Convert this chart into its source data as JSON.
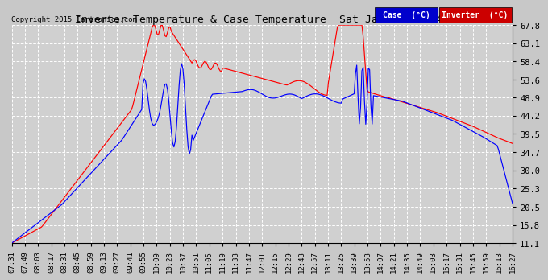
{
  "title": "Inverter Temperature & Case Temperature  Sat Jan 17  16:46",
  "copyright": "Copyright 2015 Cartronics.com",
  "legend_case_label": "Case  (°C)",
  "legend_inverter_label": "Inverter  (°C)",
  "case_color": "#0000ff",
  "inverter_color": "#ff0000",
  "legend_case_bg": "#0000cc",
  "legend_inverter_bg": "#cc0000",
  "background_color": "#c8c8c8",
  "plot_bg_color": "#d0d0d0",
  "grid_color": "#ffffff",
  "yticks": [
    11.1,
    15.8,
    20.5,
    25.3,
    30.0,
    34.7,
    39.5,
    44.2,
    48.9,
    53.6,
    58.4,
    63.1,
    67.8
  ],
  "ymin": 11.1,
  "ymax": 67.8,
  "xtick_labels": [
    "07:31",
    "07:49",
    "08:03",
    "08:17",
    "08:31",
    "08:45",
    "08:59",
    "09:13",
    "09:27",
    "09:41",
    "09:55",
    "10:09",
    "10:23",
    "10:37",
    "10:51",
    "11:05",
    "11:19",
    "11:33",
    "11:47",
    "12:01",
    "12:15",
    "12:29",
    "12:43",
    "12:57",
    "13:11",
    "13:25",
    "13:39",
    "13:53",
    "14:07",
    "14:21",
    "14:35",
    "14:49",
    "15:03",
    "15:17",
    "15:31",
    "15:45",
    "15:59",
    "16:13",
    "16:27"
  ]
}
